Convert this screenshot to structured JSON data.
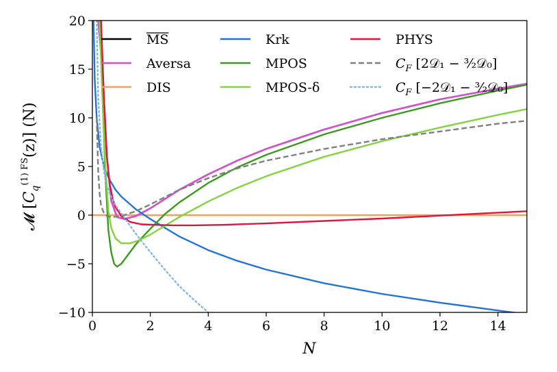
{
  "chart_data": {
    "type": "line",
    "xlabel": "N",
    "ylabel": "𝓜 [C_q^(1) FS (z)] (N)",
    "ylabel_parts": {
      "prefix": "𝓜 [",
      "main": "C",
      "sub": "q",
      "sup": "(1) FS",
      "args": "(z)] (N)"
    },
    "xlim": [
      0,
      15
    ],
    "ylim": [
      -10,
      20
    ],
    "x_ticks": [
      0,
      2,
      4,
      6,
      8,
      10,
      12,
      14
    ],
    "x_tick_labels": [
      "0",
      "2",
      "4",
      "6",
      "8",
      "10",
      "12",
      "14"
    ],
    "y_ticks": [
      -10,
      -5,
      0,
      5,
      10,
      15,
      20
    ],
    "y_tick_labels": [
      "−10",
      "−5",
      "0",
      "5",
      "10",
      "15",
      "20"
    ],
    "grid": false,
    "legend_position": "top",
    "series": [
      {
        "name": "MS",
        "legend_overline": true,
        "color": "#000000",
        "dash": "solid",
        "x": [
          0.2,
          0.35,
          0.5,
          0.65,
          0.85,
          1.1,
          1.5,
          2,
          3,
          4,
          5,
          6,
          7,
          8,
          10,
          12,
          14,
          15
        ],
        "y": [
          20,
          15,
          6,
          1.5,
          -0.2,
          -0.4,
          -0.1,
          0.7,
          2.6,
          4.2,
          5.6,
          6.8,
          7.8,
          8.8,
          10.5,
          11.9,
          13.0,
          13.5
        ]
      },
      {
        "name": "Aversa",
        "color": "#d94fd4",
        "dash": "solid",
        "x": [
          0.2,
          0.35,
          0.5,
          0.65,
          0.85,
          1.1,
          1.5,
          2,
          3,
          4,
          5,
          6,
          7,
          8,
          10,
          12,
          14,
          15
        ],
        "y": [
          20,
          15,
          6,
          1.5,
          -0.2,
          -0.4,
          -0.1,
          0.7,
          2.6,
          4.2,
          5.6,
          6.8,
          7.8,
          8.8,
          10.5,
          11.9,
          13.0,
          13.5
        ]
      },
      {
        "name": "DIS",
        "color": "#f5a05a",
        "dash": "solid",
        "x": [
          0,
          15
        ],
        "y": [
          0,
          0
        ]
      },
      {
        "name": "Krk",
        "color": "#2173d8",
        "dash": "solid",
        "x": [
          0.04,
          0.08,
          0.15,
          0.25,
          0.4,
          0.6,
          0.8,
          1,
          1.5,
          2,
          3,
          4,
          5,
          6,
          8,
          10,
          12,
          14,
          15
        ],
        "y": [
          20,
          14,
          10,
          7,
          5,
          3.6,
          2.6,
          1.9,
          0.6,
          -0.4,
          -2.2,
          -3.6,
          -4.7,
          -5.6,
          -7.0,
          -8.1,
          -9.0,
          -9.8,
          -10.2
        ]
      },
      {
        "name": "MPOS",
        "color": "#3a9a1c",
        "dash": "solid",
        "x": [
          0.25,
          0.35,
          0.45,
          0.55,
          0.65,
          0.75,
          0.85,
          1.0,
          1.2,
          1.5,
          2,
          2.5,
          3,
          4,
          5,
          6,
          8,
          10,
          12,
          14,
          15
        ],
        "y": [
          20,
          12,
          4,
          -1.5,
          -3.8,
          -5.0,
          -5.3,
          -5.0,
          -4.2,
          -3.0,
          -1.4,
          0.1,
          1.3,
          3.3,
          4.9,
          6.2,
          8.3,
          10.0,
          11.5,
          12.8,
          13.4
        ]
      },
      {
        "name": "MPOS-δ",
        "color": "#82d33e",
        "dash": "solid",
        "x": [
          0.25,
          0.35,
          0.45,
          0.55,
          0.65,
          0.8,
          1.0,
          1.3,
          1.6,
          2,
          2.5,
          3,
          4,
          5,
          6,
          8,
          10,
          12,
          14,
          15
        ],
        "y": [
          20,
          12,
          5,
          0.5,
          -1.3,
          -2.4,
          -2.9,
          -2.9,
          -2.6,
          -2.0,
          -1.1,
          -0.2,
          1.4,
          2.8,
          4.0,
          6.0,
          7.6,
          9.0,
          10.3,
          10.9
        ]
      },
      {
        "name": "PHYS",
        "color": "#e0143c",
        "dash": "solid",
        "x": [
          0.3,
          0.4,
          0.5,
          0.6,
          0.7,
          0.8,
          1,
          1.3,
          1.7,
          2.2,
          2.8,
          3.5,
          4.5,
          6,
          8,
          10,
          12,
          14,
          15
        ],
        "y": [
          20,
          12,
          6,
          3.2,
          1.7,
          0.8,
          -0.1,
          -0.7,
          -0.95,
          -1.0,
          -1.05,
          -1.05,
          -1.0,
          -0.85,
          -0.6,
          -0.35,
          -0.05,
          0.25,
          0.4
        ]
      },
      {
        "name": "C_F [2𝒟₁ − (3/2)𝒟₀]",
        "color": "#7f7f7f",
        "dash": "dashed",
        "x": [
          0.15,
          0.2,
          0.25,
          0.3,
          0.4,
          0.5,
          0.7,
          1,
          1.5,
          2,
          3,
          4,
          5,
          6,
          8,
          10,
          12,
          14,
          15
        ],
        "y": [
          10,
          4.5,
          2.2,
          1.0,
          0.2,
          -0.1,
          -0.2,
          -0.1,
          0.4,
          1.1,
          2.6,
          3.8,
          4.8,
          5.6,
          6.8,
          7.8,
          8.6,
          9.4,
          9.7
        ]
      },
      {
        "name": "C_F [−2𝒟₁ − (3/2)𝒟₀]",
        "color": "#7fb8e6",
        "dash": "dotted",
        "x": [
          0.15,
          0.2,
          0.3,
          0.4,
          0.5,
          0.6,
          0.8,
          1,
          1.3,
          1.6,
          2,
          2.5,
          3,
          3.5,
          4
        ],
        "y": [
          20,
          12,
          7,
          4.5,
          3.0,
          2.2,
          1.0,
          0.2,
          -1.1,
          -2.3,
          -3.8,
          -5.6,
          -7.3,
          -8.7,
          -10
        ]
      }
    ],
    "legend_columns": [
      [
        "MS",
        "Aversa",
        "DIS"
      ],
      [
        "Krk",
        "MPOS",
        "MPOS-δ"
      ],
      [
        "PHYS",
        "C_F [2𝒟₁ − (3/2)𝒟₀]",
        "C_F [−2𝒟₁ − (3/2)𝒟₀]"
      ]
    ],
    "legend_display": {
      "MS": {
        "text": "MS"
      },
      "Aversa": {
        "text": "Aversa"
      },
      "DIS": {
        "text": "DIS"
      },
      "Krk": {
        "text": "Krk"
      },
      "MPOS": {
        "text": "MPOS"
      },
      "MPOS-δ": {
        "text": "MPOS-δ"
      },
      "PHYS": {
        "text": "PHYS"
      },
      "C_F [2𝒟₁ − (3/2)𝒟₀]": {
        "pre": "C",
        "sub": "F",
        "post": " [2𝒟₁ − ³⁄₂𝒟₀]"
      },
      "C_F [−2𝒟₁ − (3/2)𝒟₀]": {
        "pre": "C",
        "sub": "F",
        "post": " [−2𝒟₁ − ³⁄₂𝒟₀]"
      }
    }
  }
}
